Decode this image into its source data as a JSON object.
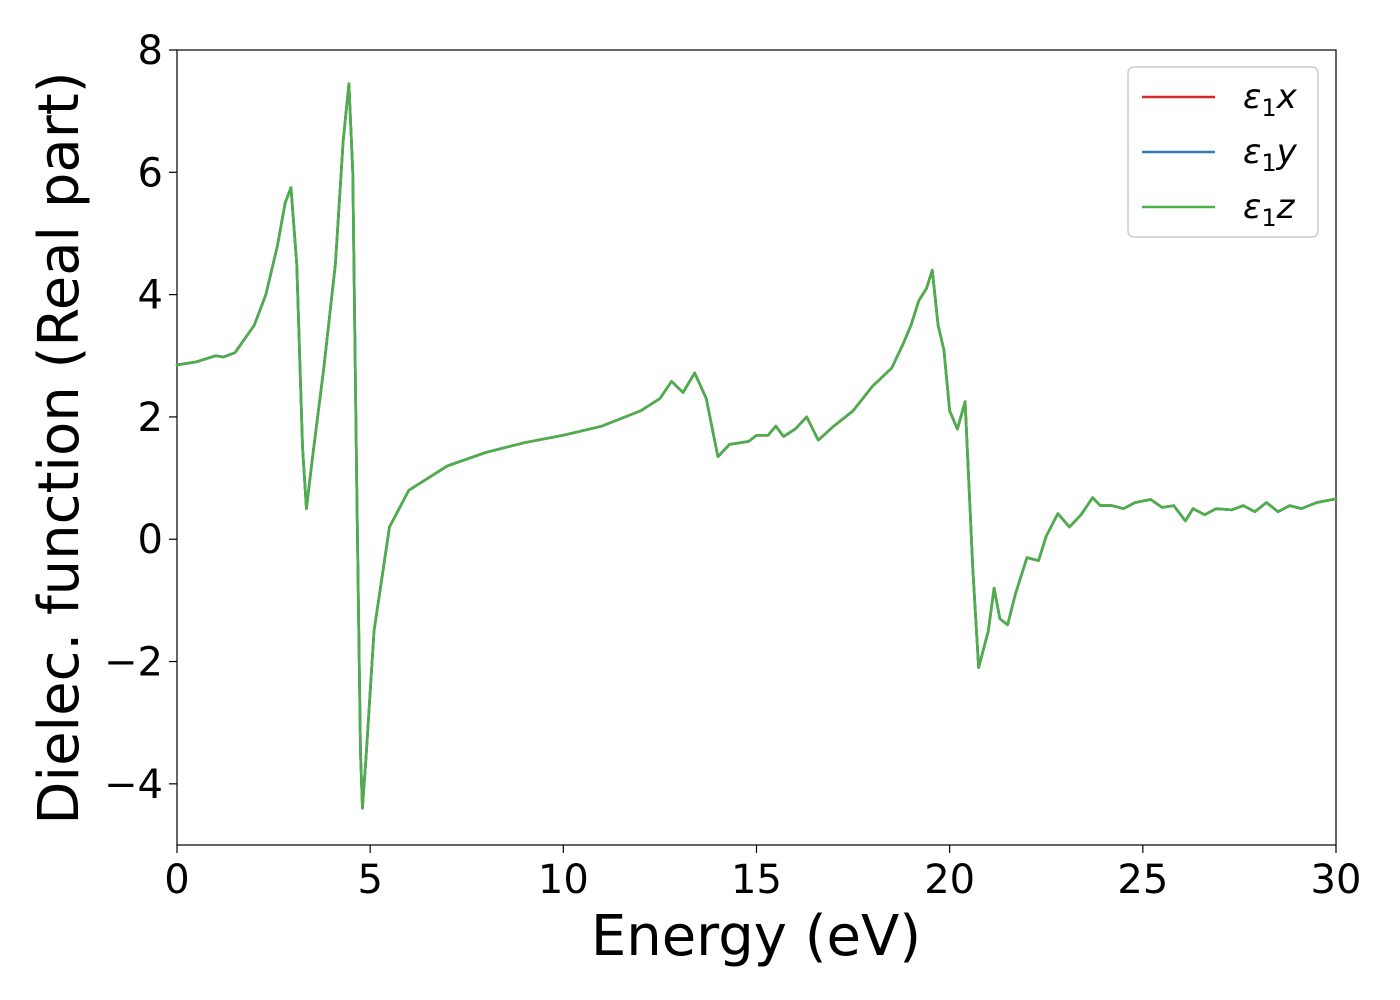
{
  "chart_data": {
    "type": "line",
    "title": "",
    "xlabel": "Energy (eV)",
    "ylabel": "Dielec. function (Real part)",
    "xlim": [
      0,
      30
    ],
    "ylim": [
      -5,
      8
    ],
    "xticks": [
      0,
      5,
      10,
      15,
      20,
      25,
      30
    ],
    "yticks": [
      -4,
      -2,
      0,
      2,
      4,
      6,
      8
    ],
    "xtick_labels": [
      "0",
      "5",
      "10",
      "15",
      "20",
      "25",
      "30"
    ],
    "ytick_labels": [
      "−4",
      "−2",
      "0",
      "2",
      "4",
      "6",
      "8"
    ],
    "grid": false,
    "legend_position": "top-right",
    "series": [
      {
        "name": "x",
        "label_symbol": "ε",
        "label_sub": "1",
        "color": "#d62728"
      },
      {
        "name": "y",
        "label_symbol": "ε",
        "label_sub": "1",
        "color": "#377eb8"
      },
      {
        "name": "z",
        "label_symbol": "ε",
        "label_sub": "1",
        "color": "#4daf4a"
      }
    ],
    "x": [
      0,
      0.5,
      1.0,
      1.2,
      1.5,
      2.0,
      2.3,
      2.6,
      2.8,
      2.95,
      3.1,
      3.25,
      3.35,
      3.5,
      3.8,
      4.1,
      4.3,
      4.45,
      4.55,
      4.65,
      4.75,
      4.8,
      4.9,
      5.1,
      5.5,
      6.0,
      7.0,
      8.0,
      9.0,
      10.0,
      11.0,
      12.0,
      12.5,
      12.8,
      13.1,
      13.4,
      13.7,
      14.0,
      14.3,
      14.8,
      15.0,
      15.3,
      15.5,
      15.7,
      16.0,
      16.3,
      16.6,
      17.0,
      17.5,
      18.0,
      18.5,
      18.8,
      19.0,
      19.2,
      19.4,
      19.55,
      19.7,
      19.85,
      20.0,
      20.2,
      20.4,
      20.6,
      20.75,
      21.0,
      21.15,
      21.3,
      21.5,
      21.7,
      22.0,
      22.3,
      22.5,
      22.8,
      23.1,
      23.4,
      23.7,
      23.9,
      24.2,
      24.5,
      24.8,
      25.2,
      25.5,
      25.8,
      26.1,
      26.3,
      26.6,
      26.9,
      27.3,
      27.6,
      27.9,
      28.2,
      28.5,
      28.8,
      29.1,
      29.5,
      30.0
    ],
    "y": [
      2.85,
      2.9,
      3.0,
      2.98,
      3.05,
      3.5,
      4.0,
      4.8,
      5.5,
      5.75,
      4.5,
      1.5,
      0.5,
      1.3,
      2.8,
      4.5,
      6.5,
      7.45,
      6.0,
      1.0,
      -3.5,
      -4.4,
      -3.5,
      -1.5,
      0.2,
      0.8,
      1.2,
      1.42,
      1.58,
      1.7,
      1.85,
      2.1,
      2.3,
      2.58,
      2.4,
      2.72,
      2.3,
      1.35,
      1.55,
      1.6,
      1.7,
      1.7,
      1.85,
      1.68,
      1.8,
      2.0,
      1.62,
      1.85,
      2.1,
      2.5,
      2.8,
      3.2,
      3.5,
      3.9,
      4.1,
      4.4,
      3.5,
      3.1,
      2.1,
      1.8,
      2.25,
      -0.5,
      -2.1,
      -1.5,
      -0.8,
      -1.3,
      -1.4,
      -0.9,
      -0.3,
      -0.35,
      0.05,
      0.42,
      0.2,
      0.4,
      0.68,
      0.55,
      0.55,
      0.5,
      0.6,
      0.65,
      0.52,
      0.55,
      0.3,
      0.5,
      0.4,
      0.5,
      0.48,
      0.55,
      0.45,
      0.6,
      0.45,
      0.55,
      0.5,
      0.6,
      0.66
    ]
  }
}
